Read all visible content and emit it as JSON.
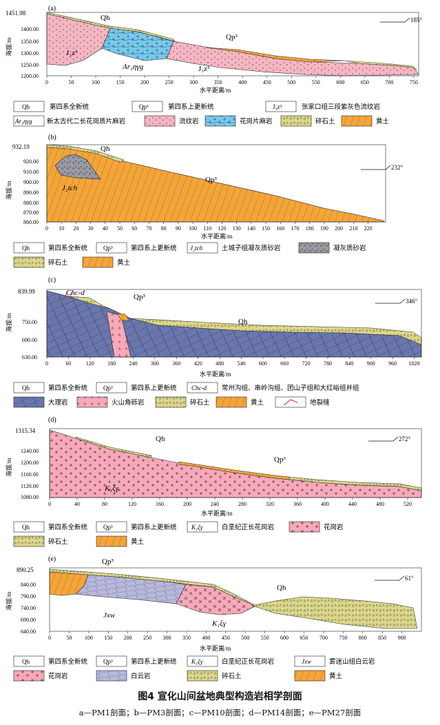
{
  "figure": {
    "title": "图4 宣化山间盆地典型构造岩相学剖面",
    "subtitle": "a—PM1剖面；b—PM3剖面；c—PM10剖面；d—PM14剖面；e—PM27剖面"
  },
  "common": {
    "ylabel": "海拔/m",
    "xlabel": "水平距离/m"
  },
  "chart_data": [
    {
      "type": "cross-section",
      "panel": "(a)",
      "orientation": "185°",
      "max_label": "1451.98",
      "y_ticks": [
        "1400.00",
        "1350.00",
        "1300.00",
        "1250.00",
        "1200.00"
      ],
      "x_ticks": [
        "0",
        "50",
        "100",
        "150",
        "200",
        "250",
        "300",
        "350",
        "400",
        "450",
        "500",
        "550",
        "600",
        "650",
        "700",
        "750"
      ],
      "xlim": [
        0,
        760
      ],
      "ylim": [
        1190,
        1452
      ],
      "labels": {
        "qh": "Qh",
        "qp": "Qp³",
        "jz_left": "J₃z³",
        "jz_right": "J₃z³",
        "ar": "Ar₃ηγg"
      },
      "legend": [
        {
          "sym": "Qh",
          "text": "第四系全新统"
        },
        {
          "sym": "Qp³",
          "text": "第四系上更新统"
        },
        {
          "sym": "J₃z³",
          "text": "张家口组三段紫灰色流纹岩"
        },
        {
          "sym": "Ar₃ηγg",
          "text": "新太古代二长花岗质片麻岩"
        },
        {
          "sym": "",
          "text": "流纹岩"
        },
        {
          "sym": "",
          "text": "花岗片麻岩"
        },
        {
          "sym": "",
          "text": "碎石土"
        },
        {
          "sym": "",
          "text": "黄土"
        }
      ]
    },
    {
      "type": "cross-section",
      "panel": "(b)",
      "orientation": "232°",
      "max_label": "932.19",
      "y_ticks": [
        "920.00",
        "910.00",
        "900.00",
        "890.00",
        "880.00",
        "870.00",
        "860.00"
      ],
      "x_ticks": [
        "0",
        "10",
        "20",
        "30",
        "40",
        "50",
        "60",
        "70",
        "80",
        "90",
        "100",
        "110",
        "120",
        "130",
        "140",
        "150",
        "160",
        "170",
        "180",
        "190",
        "200",
        "210",
        "220"
      ],
      "xlim": [
        0,
        232
      ],
      "ylim": [
        858,
        932
      ],
      "labels": {
        "qh": "Qh",
        "qp": "Qp³",
        "jt": "J₂tch"
      },
      "legend": [
        {
          "sym": "Qh",
          "text": "第四系全新统"
        },
        {
          "sym": "Qp³",
          "text": "第四系上更新统"
        },
        {
          "sym": "J₂tch",
          "text": "土城子组凝灰质砂岩"
        },
        {
          "sym": "",
          "text": "凝灰质砂岩"
        },
        {
          "sym": "",
          "text": "碎石土"
        },
        {
          "sym": "",
          "text": "黄土"
        }
      ]
    },
    {
      "type": "cross-section",
      "panel": "(c)",
      "orientation": "346°",
      "max_label": "839.99",
      "y_ticks": [
        "750.00",
        "690.00",
        "630.00"
      ],
      "x_ticks": [
        "0",
        "60",
        "120",
        "180",
        "240",
        "300",
        "360",
        "420",
        "480",
        "540",
        "600",
        "660",
        "720",
        "780",
        "840",
        "900",
        "960",
        "1020"
      ],
      "xlim": [
        0,
        1040
      ],
      "ylim": [
        628,
        840
      ],
      "labels": {
        "chc": "Chc-d",
        "qp": "Qp³",
        "qh": "Qh"
      },
      "legend": [
        {
          "sym": "Qh",
          "text": "第四系全新统"
        },
        {
          "sym": "Qp³",
          "text": "第四系上更新统"
        },
        {
          "sym": "Chc-d",
          "text": "常州沟组、串岭沟组、团山子组和大红峪组并组"
        },
        {
          "sym": "",
          "text": "大理岩"
        },
        {
          "sym": "",
          "text": "火山角砾岩"
        },
        {
          "sym": "",
          "text": "碎石土"
        },
        {
          "sym": "",
          "text": "黄土"
        },
        {
          "sym": "",
          "text": "地裂缝"
        }
      ]
    },
    {
      "type": "cross-section",
      "panel": "(d)",
      "orientation": "272°",
      "max_label": "1315.34",
      "y_ticks": [
        "1240.00",
        "1200.00",
        "1160.00",
        "1120.00",
        "1080.00"
      ],
      "x_ticks": [
        "0",
        "40",
        "80",
        "120",
        "160",
        "200",
        "240",
        "280",
        "320",
        "360",
        "400",
        "440",
        "480",
        "520"
      ],
      "xlim": [
        0,
        540
      ],
      "ylim": [
        1078,
        1316
      ],
      "labels": {
        "qh": "Qh",
        "qp": "Qp³",
        "kx": "K₁ξγ"
      },
      "legend": [
        {
          "sym": "Qh",
          "text": "第四系全新统"
        },
        {
          "sym": "Qp³",
          "text": "第四系上更新统"
        },
        {
          "sym": "K₁ξγ",
          "text": "白垩纪正长花岗岩"
        },
        {
          "sym": "",
          "text": "花岗岩"
        },
        {
          "sym": "",
          "text": "碎石土"
        },
        {
          "sym": "",
          "text": "黄土"
        }
      ]
    },
    {
      "type": "cross-section",
      "panel": "(e)",
      "orientation": "61°",
      "max_label": "890.25",
      "y_ticks": [
        "840.00",
        "790.00",
        "740.00",
        "690.00",
        "640.00"
      ],
      "x_ticks": [
        "0",
        "50",
        "100",
        "150",
        "200",
        "250",
        "300",
        "350",
        "400",
        "450",
        "500",
        "550",
        "600",
        "650",
        "700",
        "750",
        "800",
        "850",
        "900"
      ],
      "xlim": [
        0,
        950
      ],
      "ylim": [
        638,
        891
      ],
      "labels": {
        "qp": "Qp³",
        "qh": "Qh",
        "jxw": "Jxw",
        "kx": "K₁ξγ"
      },
      "legend": [
        {
          "sym": "Qh",
          "text": "第四系全新统"
        },
        {
          "sym": "Qp³",
          "text": "第四系上更新统"
        },
        {
          "sym": "K₁ξγ",
          "text": "白垩纪正长花岗岩"
        },
        {
          "sym": "Jxw",
          "text": "雾迷山组白云岩"
        },
        {
          "sym": "",
          "text": "花岗岩"
        },
        {
          "sym": "",
          "text": "白云岩"
        },
        {
          "sym": "",
          "text": "碎石土"
        },
        {
          "sym": "",
          "text": "黄土"
        }
      ]
    }
  ]
}
